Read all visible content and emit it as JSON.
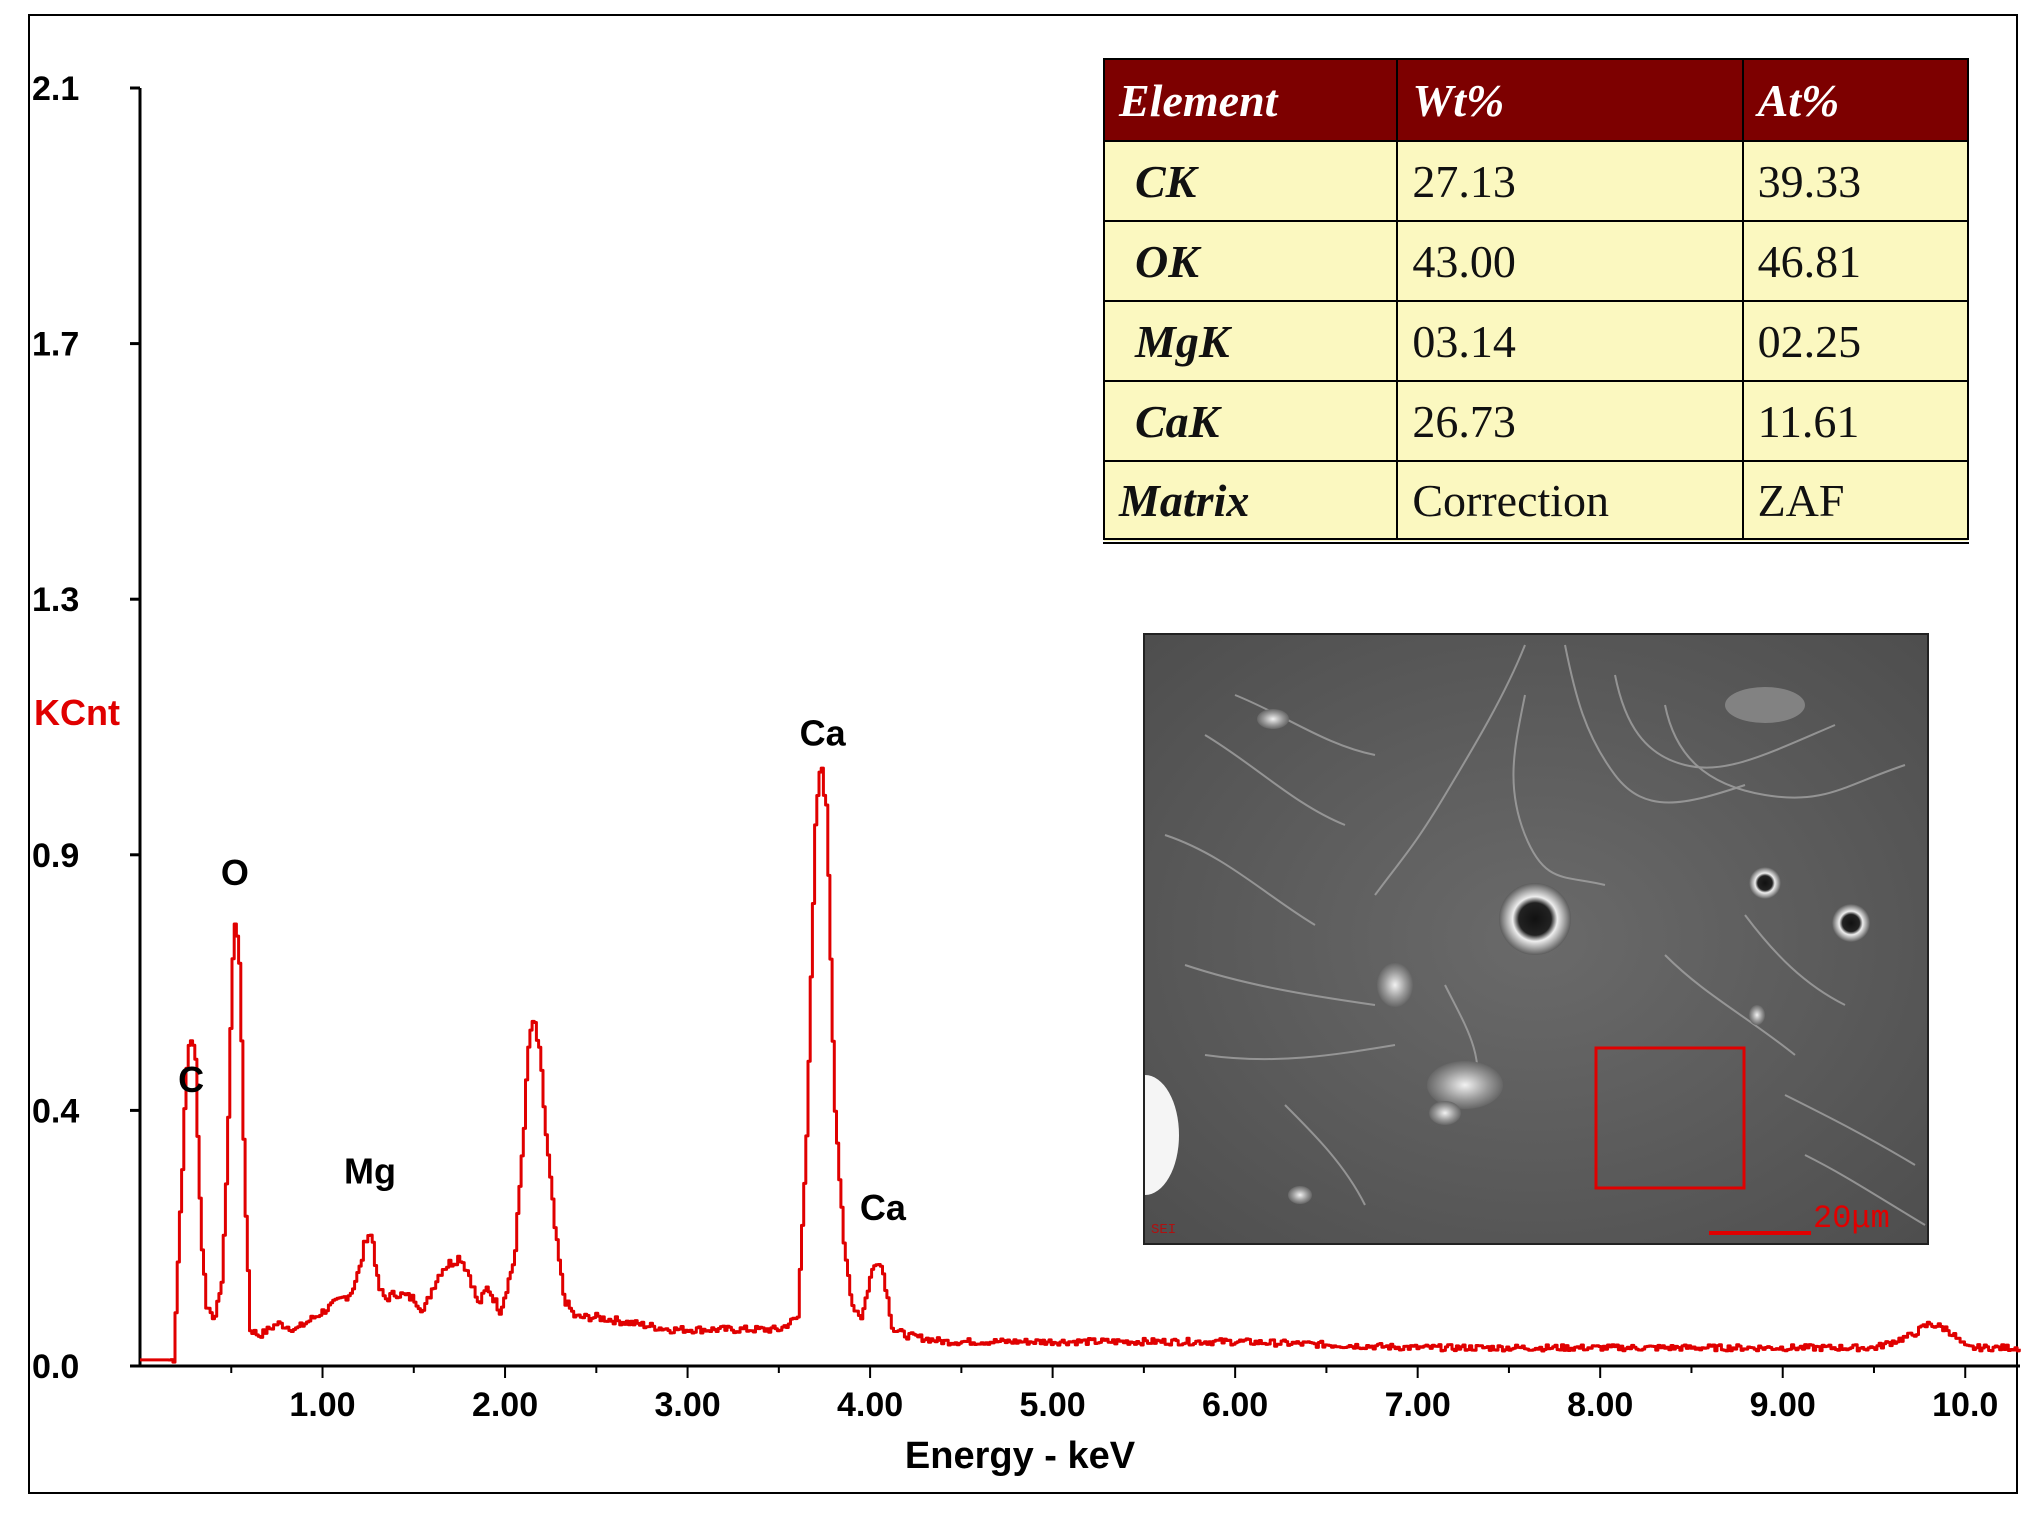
{
  "chart_data": {
    "type": "line",
    "ylabel": "KCnt",
    "xlabel": "Energy - keV",
    "x_ticks": [
      "1.00",
      "2.00",
      "3.00",
      "4.00",
      "5.00",
      "6.00",
      "7.00",
      "8.00",
      "9.00",
      "10.0"
    ],
    "y_ticks": [
      "0.0",
      "0.4",
      "0.9",
      "1.3",
      "1.7",
      "2.1"
    ],
    "xlim": [
      0.0,
      10.3
    ],
    "ylim": [
      0.0,
      2.1
    ],
    "series": [
      {
        "color": "#e00000",
        "x": [
          0.0,
          0.1,
          0.18,
          0.22,
          0.25,
          0.27,
          0.3,
          0.33,
          0.36,
          0.4,
          0.44,
          0.47,
          0.5,
          0.52,
          0.54,
          0.57,
          0.6,
          0.65,
          0.75,
          0.85,
          0.95,
          1.05,
          1.15,
          1.2,
          1.24,
          1.27,
          1.3,
          1.34,
          1.4,
          1.5,
          1.55,
          1.6,
          1.65,
          1.7,
          1.75,
          1.8,
          1.85,
          1.9,
          1.97,
          2.05,
          2.1,
          2.13,
          2.16,
          2.19,
          2.22,
          2.27,
          2.32,
          2.38,
          2.5,
          2.7,
          2.9,
          3.1,
          3.3,
          3.5,
          3.6,
          3.65,
          3.7,
          3.73,
          3.76,
          3.8,
          3.85,
          3.9,
          3.95,
          4.0,
          4.04,
          4.07,
          4.12,
          4.2,
          4.4,
          5.0,
          6.0,
          7.0,
          8.0,
          9.0,
          9.5,
          9.7,
          9.8,
          9.9,
          10.0,
          10.3
        ],
        "y": [
          0.01,
          0.01,
          0.01,
          0.28,
          0.48,
          0.55,
          0.5,
          0.22,
          0.1,
          0.08,
          0.12,
          0.3,
          0.65,
          0.74,
          0.67,
          0.3,
          0.06,
          0.05,
          0.07,
          0.06,
          0.08,
          0.1,
          0.12,
          0.16,
          0.22,
          0.21,
          0.13,
          0.11,
          0.12,
          0.11,
          0.09,
          0.13,
          0.16,
          0.17,
          0.18,
          0.15,
          0.1,
          0.13,
          0.09,
          0.18,
          0.4,
          0.55,
          0.56,
          0.5,
          0.38,
          0.22,
          0.11,
          0.08,
          0.08,
          0.07,
          0.06,
          0.06,
          0.06,
          0.06,
          0.08,
          0.4,
          0.92,
          0.99,
          0.9,
          0.45,
          0.2,
          0.1,
          0.08,
          0.15,
          0.18,
          0.15,
          0.06,
          0.05,
          0.04,
          0.04,
          0.04,
          0.03,
          0.03,
          0.03,
          0.03,
          0.05,
          0.07,
          0.06,
          0.03,
          0.03
        ]
      }
    ],
    "annotations": [
      {
        "text": "C",
        "x": 0.28,
        "y": 0.45
      },
      {
        "text": "O",
        "x": 0.52,
        "y": 0.79
      },
      {
        "text": "Mg",
        "x": 1.26,
        "y": 0.3
      },
      {
        "text": "Ca",
        "x": 3.74,
        "y": 1.02
      },
      {
        "text": "Ca",
        "x": 4.07,
        "y": 0.24
      }
    ]
  },
  "table": {
    "headers": [
      "Element",
      "Wt%",
      "At%"
    ],
    "rows": [
      [
        "CK",
        "27.13",
        "39.33"
      ],
      [
        "OK",
        "43.00",
        "46.81"
      ],
      [
        "MgK",
        "03.14",
        "02.25"
      ],
      [
        "CaK",
        "26.73",
        "11.61"
      ],
      [
        "Matrix",
        "Correction",
        "ZAF"
      ]
    ]
  },
  "inset": {
    "scale_bar_label": "20μm",
    "detector_label": "SEI",
    "selection_color": "#e00000"
  }
}
